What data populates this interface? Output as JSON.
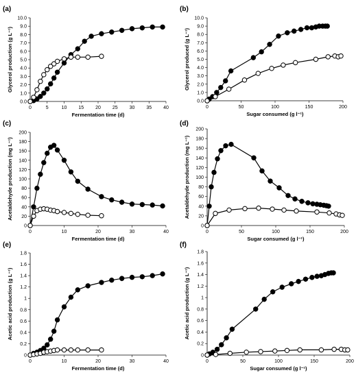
{
  "chart_data": [
    {
      "type": "line",
      "panel_label": "(a)",
      "xlabel": "Fermentation time (d)",
      "ylabel": "Glycerol production (g L⁻¹)",
      "xlim": [
        0,
        40
      ],
      "ylim": [
        0,
        10
      ],
      "xticks": [
        0,
        5,
        10,
        15,
        20,
        25,
        30,
        35,
        40
      ],
      "yticks": [
        0,
        1,
        2,
        3,
        4,
        5,
        6,
        7,
        8,
        9,
        10
      ],
      "ytick_decimals": 1,
      "grid": false,
      "legend": "none",
      "series": [
        {
          "marker": "filled",
          "x": [
            0,
            1,
            2,
            3,
            4,
            5,
            6,
            7,
            8,
            10,
            12,
            14,
            16,
            18,
            21,
            24,
            27,
            30,
            33,
            36,
            39
          ],
          "y": [
            0.0,
            0.1,
            0.3,
            0.6,
            1.0,
            1.5,
            2.1,
            2.8,
            3.5,
            4.6,
            5.6,
            6.3,
            7.2,
            7.8,
            8.1,
            8.3,
            8.5,
            8.7,
            8.8,
            8.9,
            8.9
          ]
        },
        {
          "marker": "open",
          "x": [
            0,
            1,
            2,
            3,
            4,
            5,
            6,
            7,
            8,
            10,
            12,
            14,
            17,
            21
          ],
          "y": [
            0.0,
            0.5,
            1.4,
            2.4,
            3.2,
            3.8,
            4.2,
            4.5,
            4.8,
            5.1,
            5.3,
            5.3,
            5.3,
            5.4
          ]
        }
      ]
    },
    {
      "type": "line",
      "panel_label": "(b)",
      "xlabel": "Sugar consumed (g l⁻¹)",
      "ylabel": "Glycerol produced (g L⁻¹)",
      "xlim": [
        0,
        200
      ],
      "ylim": [
        0,
        10
      ],
      "xticks": [
        0,
        50,
        100,
        150,
        200
      ],
      "yticks": [
        0,
        1,
        2,
        3,
        4,
        5,
        6,
        7,
        8,
        9,
        10
      ],
      "ytick_decimals": 1,
      "grid": false,
      "legend": "none",
      "series": [
        {
          "marker": "filled",
          "x": [
            0,
            3,
            8,
            14,
            20,
            27,
            35,
            68,
            80,
            92,
            105,
            118,
            128,
            138,
            147,
            154,
            160,
            165,
            170,
            174,
            177
          ],
          "y": [
            0.0,
            0.2,
            0.5,
            1.0,
            1.6,
            2.4,
            3.6,
            5.2,
            5.9,
            6.8,
            7.8,
            8.2,
            8.4,
            8.6,
            8.8,
            8.8,
            8.9,
            9.0,
            9.0,
            9.0,
            9.0
          ]
        },
        {
          "marker": "open",
          "x": [
            0,
            12,
            32,
            55,
            75,
            95,
            112,
            130,
            160,
            178,
            188,
            193,
            197
          ],
          "y": [
            0.0,
            0.5,
            1.4,
            2.5,
            3.3,
            3.9,
            4.3,
            4.6,
            5.0,
            5.3,
            5.4,
            5.3,
            5.4
          ]
        }
      ]
    },
    {
      "type": "line",
      "panel_label": "(c)",
      "xlabel": "Fermentation time (d)",
      "ylabel": "Acetaldehyde production (mg L⁻¹)",
      "xlim": [
        0,
        40
      ],
      "ylim": [
        0,
        200
      ],
      "xticks": [
        0,
        10,
        20,
        30,
        40
      ],
      "yticks": [
        0,
        20,
        40,
        60,
        80,
        100,
        120,
        140,
        160,
        180,
        200
      ],
      "ytick_decimals": 0,
      "grid": false,
      "legend": "none",
      "series": [
        {
          "marker": "filled",
          "x": [
            0,
            1,
            2,
            3,
            4,
            5,
            6,
            7,
            8,
            10,
            12,
            14,
            17,
            21,
            24,
            27,
            30,
            33,
            36,
            39
          ],
          "y": [
            0,
            40,
            80,
            110,
            135,
            155,
            168,
            172,
            162,
            140,
            115,
            95,
            78,
            62,
            55,
            50,
            46,
            45,
            44,
            42
          ]
        },
        {
          "marker": "open",
          "x": [
            0,
            1,
            2,
            3,
            4,
            5,
            6,
            7,
            8,
            10,
            12,
            14,
            17,
            21
          ],
          "y": [
            0,
            20,
            32,
            35,
            36,
            35,
            33,
            32,
            30,
            28,
            26,
            24,
            22,
            21
          ]
        }
      ]
    },
    {
      "type": "line",
      "panel_label": "(d)",
      "xlabel": "Sugar consumed (g l⁻¹)",
      "ylabel": "Acetaldehyde production (mg L⁻¹)",
      "xlim": [
        0,
        200
      ],
      "ylim": [
        0,
        200
      ],
      "xticks": [
        0,
        50,
        100,
        150,
        200
      ],
      "yticks": [
        0,
        20,
        40,
        60,
        80,
        100,
        120,
        140,
        160,
        180,
        200
      ],
      "ytick_decimals": 0,
      "grid": false,
      "legend": "none",
      "series": [
        {
          "marker": "filled",
          "x": [
            0,
            3,
            6,
            10,
            15,
            20,
            27,
            35,
            68,
            80,
            92,
            105,
            118,
            128,
            138,
            147,
            154,
            160,
            165,
            170,
            174,
            177
          ],
          "y": [
            0,
            40,
            80,
            110,
            138,
            155,
            165,
            168,
            140,
            113,
            92,
            78,
            62,
            55,
            50,
            47,
            45,
            44,
            43,
            42,
            41,
            40
          ]
        },
        {
          "marker": "open",
          "x": [
            0,
            12,
            32,
            55,
            75,
            95,
            112,
            130,
            160,
            178,
            188,
            193,
            197
          ],
          "y": [
            0,
            25,
            32,
            35,
            36,
            34,
            32,
            30,
            28,
            26,
            24,
            22,
            21
          ]
        }
      ]
    },
    {
      "type": "line",
      "panel_label": "(e)",
      "xlabel": "Fermentation time (d)",
      "ylabel": "Acetic acid production (g L⁻¹)",
      "xlim": [
        0,
        40
      ],
      "ylim": [
        0,
        1.8
      ],
      "xticks": [
        0,
        10,
        20,
        30,
        40
      ],
      "yticks": [
        0,
        0.2,
        0.4,
        0.6,
        0.8,
        1,
        1.2,
        1.4,
        1.6,
        1.8
      ],
      "ytick_decimals": -1,
      "grid": false,
      "legend": "none",
      "series": [
        {
          "marker": "filled",
          "x": [
            0,
            1,
            2,
            3,
            4,
            5,
            6,
            7,
            8,
            10,
            12,
            14,
            17,
            21,
            24,
            27,
            30,
            33,
            36,
            39
          ],
          "y": [
            0.0,
            0.03,
            0.05,
            0.08,
            0.12,
            0.18,
            0.28,
            0.42,
            0.62,
            0.85,
            1.02,
            1.15,
            1.22,
            1.28,
            1.32,
            1.35,
            1.37,
            1.38,
            1.4,
            1.43
          ]
        },
        {
          "marker": "open",
          "x": [
            0,
            1,
            2,
            3,
            4,
            5,
            6,
            7,
            8,
            10,
            12,
            14,
            17,
            21
          ],
          "y": [
            0.0,
            0.01,
            0.02,
            0.03,
            0.05,
            0.06,
            0.07,
            0.08,
            0.09,
            0.09,
            0.09,
            0.09,
            0.09,
            0.09
          ]
        }
      ]
    },
    {
      "type": "line",
      "panel_label": "(f)",
      "xlabel": "Sugar consumed (g l⁻¹)",
      "ylabel": "Acetic acid production (g L⁻¹)",
      "xlim": [
        0,
        200
      ],
      "ylim": [
        0,
        1.8
      ],
      "xticks": [
        0,
        50,
        100,
        150,
        200
      ],
      "yticks": [
        0,
        0.2,
        0.4,
        0.6,
        0.8,
        1,
        1.2,
        1.4,
        1.6,
        1.8
      ],
      "ytick_decimals": -1,
      "grid": false,
      "legend": "none",
      "series": [
        {
          "marker": "filled",
          "x": [
            0,
            3,
            8,
            14,
            20,
            27,
            35,
            68,
            80,
            92,
            105,
            118,
            128,
            138,
            147,
            154,
            160,
            165,
            170,
            174,
            177
          ],
          "y": [
            0.0,
            0.02,
            0.05,
            0.1,
            0.18,
            0.3,
            0.45,
            0.8,
            0.97,
            1.1,
            1.18,
            1.24,
            1.28,
            1.32,
            1.35,
            1.37,
            1.38,
            1.4,
            1.42,
            1.43,
            1.43
          ]
        },
        {
          "marker": "open",
          "x": [
            0,
            12,
            32,
            55,
            75,
            95,
            112,
            130,
            160,
            178,
            188,
            193,
            197
          ],
          "y": [
            0.0,
            0.01,
            0.03,
            0.05,
            0.06,
            0.07,
            0.08,
            0.09,
            0.09,
            0.1,
            0.1,
            0.09,
            0.09
          ]
        }
      ]
    }
  ]
}
